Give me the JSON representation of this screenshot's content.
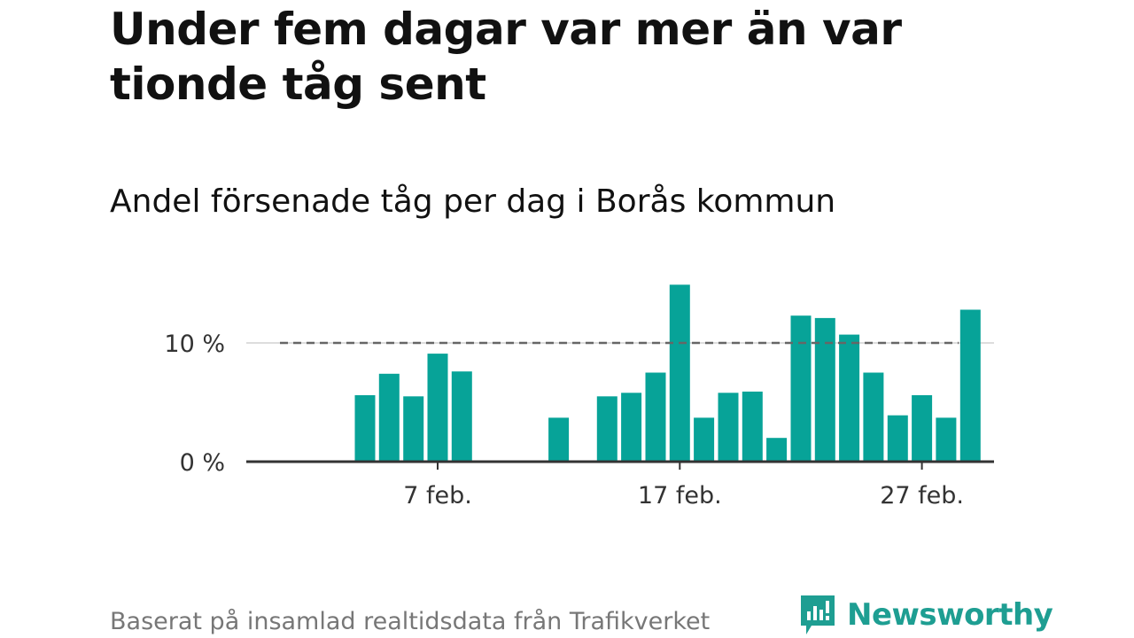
{
  "header": {
    "title": "Under fem dagar var mer än var tionde tåg sent",
    "subtitle": "Andel försenade tåg per dag i Borås kommun"
  },
  "footer": {
    "source": "Baserat på insamlad realtidsdata från Trafikverket",
    "brand": "Newsworthy"
  },
  "colors": {
    "bar": "#07a398",
    "reference_line": "#666666",
    "axis": "#333333",
    "grid": "#dddddd",
    "brand": "#1e9e92"
  },
  "chart_data": {
    "type": "bar",
    "title": "Andel försenade tåg per dag i Borås kommun",
    "xlabel": "",
    "ylabel": "",
    "x_ticks": [
      {
        "day": 7,
        "label": "7 feb."
      },
      {
        "day": 17,
        "label": "17 feb."
      },
      {
        "day": 27,
        "label": "27 feb."
      }
    ],
    "y_ticks": [
      {
        "value": 0,
        "label": "0 %"
      },
      {
        "value": 10,
        "label": "10 %"
      }
    ],
    "ylim": [
      0,
      16
    ],
    "xlim_days": [
      0,
      30
    ],
    "reference_line": {
      "value": 10,
      "style": "dashed"
    },
    "grid": "horizontal at 10 %",
    "unit": "%",
    "data": [
      {
        "day": 4,
        "value": 5.6
      },
      {
        "day": 5,
        "value": 7.4
      },
      {
        "day": 6,
        "value": 5.5
      },
      {
        "day": 7,
        "value": 9.1
      },
      {
        "day": 8,
        "value": 7.6
      },
      {
        "day": 12,
        "value": 3.7
      },
      {
        "day": 14,
        "value": 5.5
      },
      {
        "day": 15,
        "value": 5.8
      },
      {
        "day": 16,
        "value": 7.5
      },
      {
        "day": 17,
        "value": 14.9
      },
      {
        "day": 18,
        "value": 3.7
      },
      {
        "day": 19,
        "value": 5.8
      },
      {
        "day": 20,
        "value": 5.9
      },
      {
        "day": 21,
        "value": 2.0
      },
      {
        "day": 22,
        "value": 12.3
      },
      {
        "day": 23,
        "value": 12.1
      },
      {
        "day": 24,
        "value": 10.7
      },
      {
        "day": 25,
        "value": 7.5
      },
      {
        "day": 26,
        "value": 3.9
      },
      {
        "day": 27,
        "value": 5.6
      },
      {
        "day": 28,
        "value": 3.7
      },
      {
        "day": 29,
        "value": 12.8
      }
    ]
  }
}
